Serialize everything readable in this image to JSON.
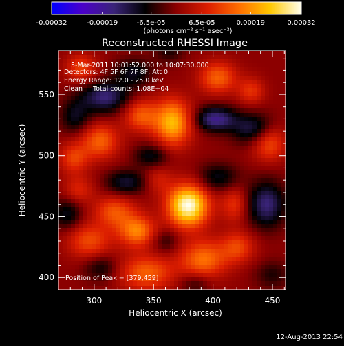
{
  "chart_data": {
    "type": "heatmap",
    "title": "Reconstructed RHESSI Image",
    "xlabel": "Heliocentric X (arcsec)",
    "ylabel": "Heliocentric Y (arcsec)",
    "xlim": [
      270,
      461
    ],
    "ylim": [
      390,
      586
    ],
    "xticks": [
      300,
      350,
      400,
      450
    ],
    "yticks": [
      400,
      450,
      500,
      550
    ],
    "colorbar": {
      "ticks": [
        "-0.00032",
        "-0.00019",
        "-6.5e-05",
        "6.5e-05",
        "0.00019",
        "0.00032"
      ],
      "unit_label": "(photons cm⁻² s⁻¹ asec⁻²)",
      "range": [
        -0.00032,
        0.00032
      ],
      "colormap": [
        "#0000ff",
        "#4b00c8",
        "#3a2478",
        "#000000",
        "#8c0000",
        "#dc1e00",
        "#ff6e00",
        "#ffc800",
        "#fffff0"
      ]
    },
    "annotations": [
      "5-Mar-2011 10:01:52.000 to 10:07:30.000",
      "Detectors: 4F 5F 6F 7F 8F, Att 0",
      "Energy Range: 12.0 - 25.0 keV",
      "Clean     Total counts: 1.08E+04"
    ],
    "peak_text": "Position of Peak = [379,459]",
    "peak": [
      379,
      459
    ],
    "sources": [
      {
        "x": 379,
        "y": 459,
        "sx": 12,
        "sy": 12,
        "amp": 1.0
      },
      {
        "x": 366,
        "y": 527,
        "sx": 11,
        "sy": 13,
        "amp": 0.72
      },
      {
        "x": 339,
        "y": 533,
        "sx": 10,
        "sy": 9,
        "amp": 0.42
      },
      {
        "x": 305,
        "y": 512,
        "sx": 11,
        "sy": 10,
        "amp": 0.45
      },
      {
        "x": 283,
        "y": 498,
        "sx": 9,
        "sy": 9,
        "amp": 0.35
      },
      {
        "x": 289,
        "y": 572,
        "sx": 9,
        "sy": 8,
        "amp": 0.35
      },
      {
        "x": 287,
        "y": 472,
        "sx": 9,
        "sy": 8,
        "amp": 0.25
      },
      {
        "x": 317,
        "y": 454,
        "sx": 12,
        "sy": 9,
        "amp": 0.4
      },
      {
        "x": 336,
        "y": 438,
        "sx": 11,
        "sy": 9,
        "amp": 0.55
      },
      {
        "x": 296,
        "y": 430,
        "sx": 13,
        "sy": 10,
        "amp": 0.38
      },
      {
        "x": 344,
        "y": 404,
        "sx": 16,
        "sy": 10,
        "amp": 0.45
      },
      {
        "x": 392,
        "y": 415,
        "sx": 14,
        "sy": 11,
        "amp": 0.5
      },
      {
        "x": 421,
        "y": 425,
        "sx": 10,
        "sy": 9,
        "amp": 0.35
      },
      {
        "x": 418,
        "y": 460,
        "sx": 8,
        "sy": 10,
        "amp": 0.3
      },
      {
        "x": 447,
        "y": 510,
        "sx": 10,
        "sy": 10,
        "amp": 0.4
      },
      {
        "x": 432,
        "y": 553,
        "sx": 8,
        "sy": 8,
        "amp": 0.3
      },
      {
        "x": 404,
        "y": 564,
        "sx": 11,
        "sy": 9,
        "amp": 0.45
      },
      {
        "x": 354,
        "y": 480,
        "sx": 8,
        "sy": 8,
        "amp": 0.2
      },
      {
        "x": 309,
        "y": 548,
        "sx": 14,
        "sy": 9,
        "amp": -0.5
      },
      {
        "x": 333,
        "y": 568,
        "sx": 11,
        "sy": 8,
        "amp": -0.3
      },
      {
        "x": 363,
        "y": 586,
        "sx": 9,
        "sy": 7,
        "amp": -0.2
      },
      {
        "x": 402,
        "y": 530,
        "sx": 12,
        "sy": 7,
        "amp": -0.55
      },
      {
        "x": 433,
        "y": 522,
        "sx": 12,
        "sy": 9,
        "amp": -0.4
      },
      {
        "x": 445,
        "y": 460,
        "sx": 11,
        "sy": 13,
        "amp": -0.5
      },
      {
        "x": 404,
        "y": 482,
        "sx": 12,
        "sy": 8,
        "amp": -0.3
      },
      {
        "x": 348,
        "y": 500,
        "sx": 10,
        "sy": 7,
        "amp": -0.3
      },
      {
        "x": 327,
        "y": 478,
        "sx": 12,
        "sy": 7,
        "amp": -0.35
      },
      {
        "x": 277,
        "y": 452,
        "sx": 9,
        "sy": 9,
        "amp": -0.3
      },
      {
        "x": 284,
        "y": 532,
        "sx": 9,
        "sy": 10,
        "amp": -0.3
      },
      {
        "x": 360,
        "y": 430,
        "sx": 8,
        "sy": 7,
        "amp": -0.2
      },
      {
        "x": 306,
        "y": 408,
        "sx": 10,
        "sy": 8,
        "amp": -0.25
      },
      {
        "x": 450,
        "y": 402,
        "sx": 10,
        "sy": 8,
        "amp": -0.2
      },
      {
        "x": 385,
        "y": 395,
        "sx": 9,
        "sy": 6,
        "amp": -0.2
      }
    ]
  },
  "footer": {
    "timestamp": "12-Aug-2013 22:54"
  }
}
